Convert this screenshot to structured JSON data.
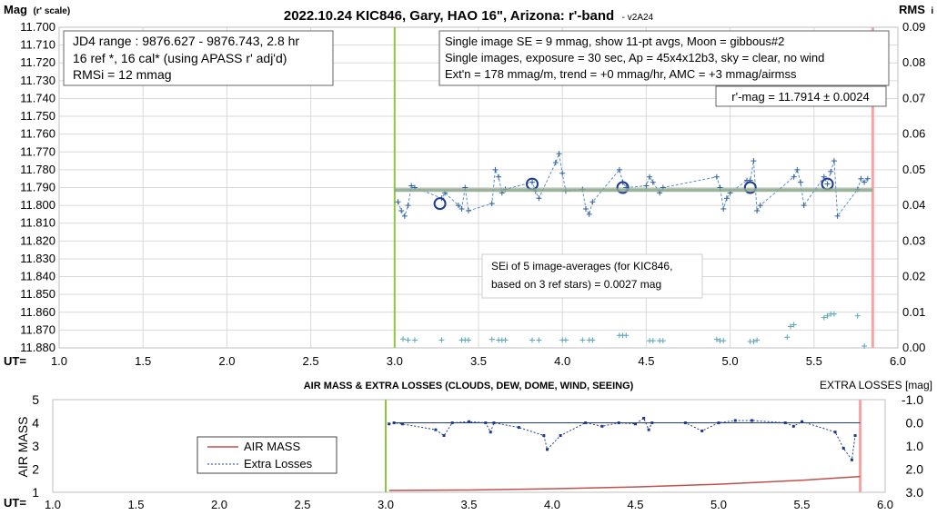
{
  "chart_data": [
    {
      "type": "scatter",
      "title": "2022.10.24 KIC846, Gary, HAO 16\", Arizona: r'-band",
      "version_tag": "- v2A24",
      "ylabel_main": "Mag",
      "ylabel_note": "(r' scale)",
      "ylabel_right": "RMS",
      "ylabel_right_suffix": "i",
      "xlabel": "UT=",
      "xlim": [
        1.0,
        6.0
      ],
      "ylim": [
        11.88,
        11.7
      ],
      "y2lim": [
        0.0,
        0.09
      ],
      "x_ticks": [
        "1.0",
        "1.5",
        "2.0",
        "2.5",
        "3.0",
        "3.5",
        "4.0",
        "4.5",
        "5.0",
        "5.5",
        "6.0"
      ],
      "y_ticks": [
        "11.700",
        "11.710",
        "11.720",
        "11.730",
        "11.740",
        "11.750",
        "11.760",
        "11.770",
        "11.780",
        "11.790",
        "11.800",
        "11.810",
        "11.820",
        "11.830",
        "11.840",
        "11.850",
        "11.860",
        "11.870",
        "11.880"
      ],
      "y2_ticks": [
        "0.09",
        "0.08",
        "0.07",
        "0.06",
        "0.05",
        "0.04",
        "0.03",
        "0.02",
        "0.01",
        "0.00"
      ],
      "grid": true,
      "start_line_x": 3.0,
      "end_line_x": 5.85,
      "mean_mag": 11.7914,
      "mean_line_x": [
        3.0,
        5.85
      ],
      "info_box_left": [
        "JD4 range : 9876.627 - 9876.743,  2.8  hr",
        "16 ref *, 16 cal* (using APASS r' adj'd)",
        "RMSi = 12 mmag"
      ],
      "info_box_right": [
        "Single image SE = 9 mmag, show  11-pt avgs, Moon = gibbous#2",
        "Single images, exposure = 30 sec, Ap = 45x4x12b3, sky = clear, no wind",
        "Ext'n = 178 mmag/m, trend = +0  mmag/hr, AMC = +3 mmag/airmss"
      ],
      "rmag_label": "r'-mag = 11.7914 ± 0.0024",
      "sei_note": [
        "SEi of 5 image-averages (for KIC846,",
        "based on 3 ref stars) = 0.0027 mag"
      ],
      "series": [
        {
          "name": "single images",
          "x": [
            3.02,
            3.04,
            3.06,
            3.08,
            3.1,
            3.12,
            3.28,
            3.3,
            3.38,
            3.4,
            3.42,
            3.44,
            3.58,
            3.6,
            3.62,
            3.64,
            3.66,
            3.82,
            3.84,
            3.86,
            3.96,
            3.98,
            4.0,
            4.02,
            4.12,
            4.14,
            4.16,
            4.18,
            4.34,
            4.36,
            4.38,
            4.5,
            4.52,
            4.54,
            4.58,
            4.6,
            4.92,
            4.94,
            4.96,
            4.98,
            5.0,
            5.1,
            5.12,
            5.14,
            5.16,
            5.18,
            5.38,
            5.4,
            5.42,
            5.44,
            5.56,
            5.58,
            5.6,
            5.62,
            5.64,
            5.76,
            5.78,
            5.8,
            5.82
          ],
          "y": [
            11.798,
            11.803,
            11.806,
            11.8,
            11.789,
            11.79,
            11.796,
            11.793,
            11.8,
            11.802,
            11.79,
            11.803,
            11.799,
            11.78,
            11.784,
            11.793,
            11.791,
            11.787,
            11.792,
            11.796,
            11.776,
            11.771,
            11.782,
            11.792,
            11.791,
            11.802,
            11.805,
            11.798,
            11.78,
            11.787,
            11.79,
            11.789,
            11.784,
            11.787,
            11.793,
            11.79,
            11.784,
            11.79,
            11.802,
            11.796,
            11.793,
            11.786,
            11.786,
            11.775,
            11.803,
            11.8,
            11.784,
            11.78,
            11.787,
            11.8,
            11.784,
            11.788,
            11.781,
            11.775,
            11.806,
            11.791,
            11.785,
            11.787,
            11.785
          ]
        },
        {
          "name": "11-pt averages",
          "x": [
            3.27,
            3.82,
            4.36,
            5.12,
            5.58
          ],
          "y": [
            11.799,
            11.788,
            11.79,
            11.79,
            11.788
          ]
        },
        {
          "name": "RMSi",
          "x": [
            3.05,
            3.08,
            3.12,
            3.28,
            3.4,
            3.42,
            3.44,
            3.58,
            3.62,
            3.64,
            3.66,
            3.82,
            3.86,
            4.0,
            4.02,
            4.12,
            4.16,
            4.18,
            4.34,
            4.36,
            4.38,
            4.52,
            4.54,
            4.58,
            4.6,
            4.92,
            4.94,
            4.96,
            5.12,
            5.14,
            5.16,
            5.34,
            5.36,
            5.38,
            5.56,
            5.58,
            5.6,
            5.62,
            5.76,
            5.8
          ],
          "y": [
            0.0025,
            0.0022,
            0.0022,
            0.0022,
            0.0022,
            0.0022,
            0.0022,
            0.0024,
            0.0022,
            0.0022,
            0.0022,
            0.0022,
            0.0022,
            0.0022,
            0.0022,
            0.0022,
            0.0022,
            0.0022,
            0.0035,
            0.0035,
            0.0035,
            0.002,
            0.002,
            0.002,
            0.002,
            0.0024,
            0.002,
            0.002,
            0.0018,
            0.0018,
            0.0022,
            0.003,
            0.006,
            0.0065,
            0.0085,
            0.009,
            0.0095,
            0.0095,
            0.009,
            0.0005
          ]
        }
      ]
    },
    {
      "type": "line",
      "title": "AIR MASS & EXTRA LOSSES (CLOUDS, DEW, DOME, WIND, SEEING)",
      "ylabel": "AIR MASS",
      "ylabel_right": "EXTRA LOSSES [mag]",
      "xlabel": "UT=",
      "xlim": [
        1.0,
        6.0
      ],
      "ylim": [
        1,
        5
      ],
      "y2lim": [
        -1.0,
        3.0
      ],
      "x_ticks": [
        "1.0",
        "1.5",
        "2.0",
        "2.5",
        "3.0",
        "3.5",
        "4.0",
        "4.5",
        "5.0",
        "5.5",
        "6.0"
      ],
      "y_ticks": [
        "5",
        "4",
        "3",
        "2",
        "1"
      ],
      "y2_ticks": [
        "-1.0",
        "0.0",
        "1.0",
        "2.0",
        "3.0"
      ],
      "start_line_x": 3.0,
      "end_line_x": 5.85,
      "zero_line_y2": 0.0,
      "zero_line_x": [
        3.05,
        5.85
      ],
      "legend": [
        "AIR MASS",
        "Extra Losses"
      ],
      "series": [
        {
          "name": "AIR MASS",
          "color": "#c0504d",
          "x": [
            3.02,
            3.5,
            4.0,
            4.5,
            5.0,
            5.5,
            5.85
          ],
          "y": [
            1.08,
            1.1,
            1.15,
            1.23,
            1.35,
            1.52,
            1.68
          ]
        },
        {
          "name": "Extra Losses",
          "color": "#1f3a93",
          "x": [
            3.02,
            3.05,
            3.1,
            3.3,
            3.35,
            3.4,
            3.5,
            3.6,
            3.63,
            3.65,
            3.8,
            3.95,
            3.97,
            4.05,
            4.2,
            4.3,
            4.4,
            4.5,
            4.55,
            4.58,
            4.6,
            4.8,
            4.9,
            5.0,
            5.1,
            5.2,
            5.4,
            5.45,
            5.5,
            5.7,
            5.75,
            5.8,
            5.82
          ],
          "y": [
            0.05,
            0.0,
            0.05,
            0.3,
            0.55,
            0.0,
            -0.05,
            0.0,
            0.4,
            0.0,
            0.2,
            0.55,
            1.15,
            0.55,
            0.0,
            0.15,
            0.0,
            0.05,
            -0.2,
            0.3,
            0.0,
            0.0,
            0.35,
            0.0,
            -0.1,
            -0.1,
            0.0,
            0.15,
            -0.05,
            0.4,
            1.1,
            1.6,
            0.55
          ]
        }
      ]
    }
  ]
}
